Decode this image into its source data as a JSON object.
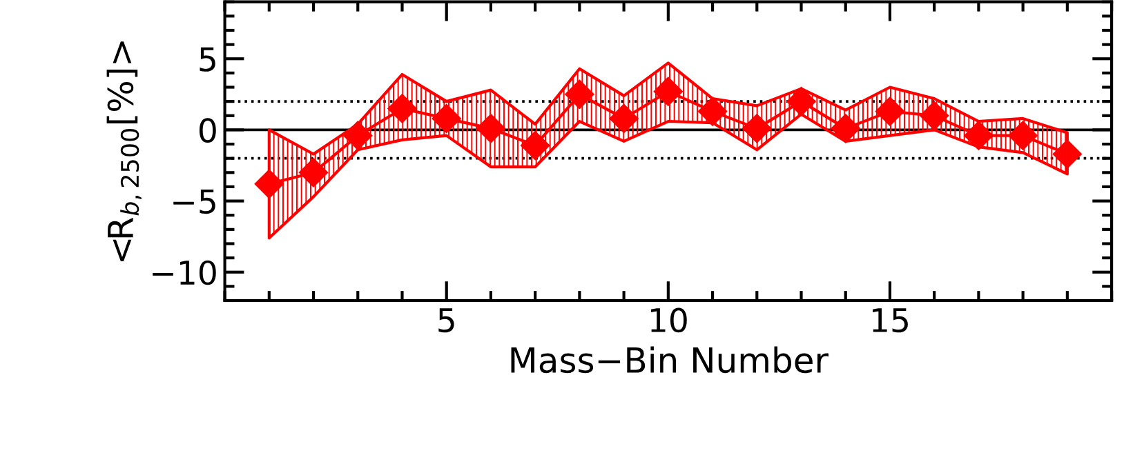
{
  "chart_data": {
    "type": "line",
    "xlabel": "Mass−Bin Number",
    "ylabel": "<R$_{b,2500}$[%]>",
    "x": [
      1,
      2,
      3,
      4,
      5,
      6,
      7,
      8,
      9,
      10,
      11,
      12,
      13,
      14,
      15,
      16,
      17,
      18,
      19
    ],
    "series": [
      {
        "color": "#ff0000",
        "values": [
          -3.8,
          -3.0,
          -0.4,
          1.5,
          0.8,
          0.1,
          -1.1,
          2.5,
          0.8,
          2.7,
          1.3,
          0.1,
          2.0,
          0.1,
          1.3,
          1.0,
          -0.4,
          -0.4,
          -1.7
        ],
        "lower": [
          -7.6,
          -4.7,
          -1.4,
          -0.7,
          -0.4,
          -2.6,
          -2.6,
          0.6,
          -0.8,
          0.6,
          0.5,
          -1.4,
          1.1,
          -0.8,
          -0.4,
          0.0,
          -1.2,
          -1.6,
          -3.1
        ],
        "upper": [
          0.0,
          -1.7,
          0.4,
          3.9,
          2.0,
          2.8,
          0.4,
          4.3,
          2.4,
          4.7,
          2.2,
          1.7,
          2.9,
          1.4,
          3.0,
          2.2,
          0.6,
          0.8,
          -0.2
        ]
      }
    ],
    "marker": "diamond",
    "line_style": "solid",
    "xlim": [
      0,
      20
    ],
    "ylim": [
      -12,
      9
    ],
    "xticks": [
      5,
      10,
      15
    ],
    "yticks": [
      {
        "value": 5,
        "label": "5"
      },
      {
        "value": 0,
        "label": "0"
      },
      {
        "value": -5,
        "label": "−5"
      },
      {
        "value": -10,
        "label": "−10"
      }
    ],
    "ref_lines": [
      {
        "axis": "y",
        "value": 0,
        "color": "#000000",
        "line_style": "solid"
      },
      {
        "axis": "y",
        "value": 2,
        "color": "#000000",
        "line_style": "dotted"
      },
      {
        "axis": "y",
        "value": -2,
        "color": "#000000",
        "line_style": "dotted"
      }
    ],
    "grid": false,
    "legend": false
  }
}
